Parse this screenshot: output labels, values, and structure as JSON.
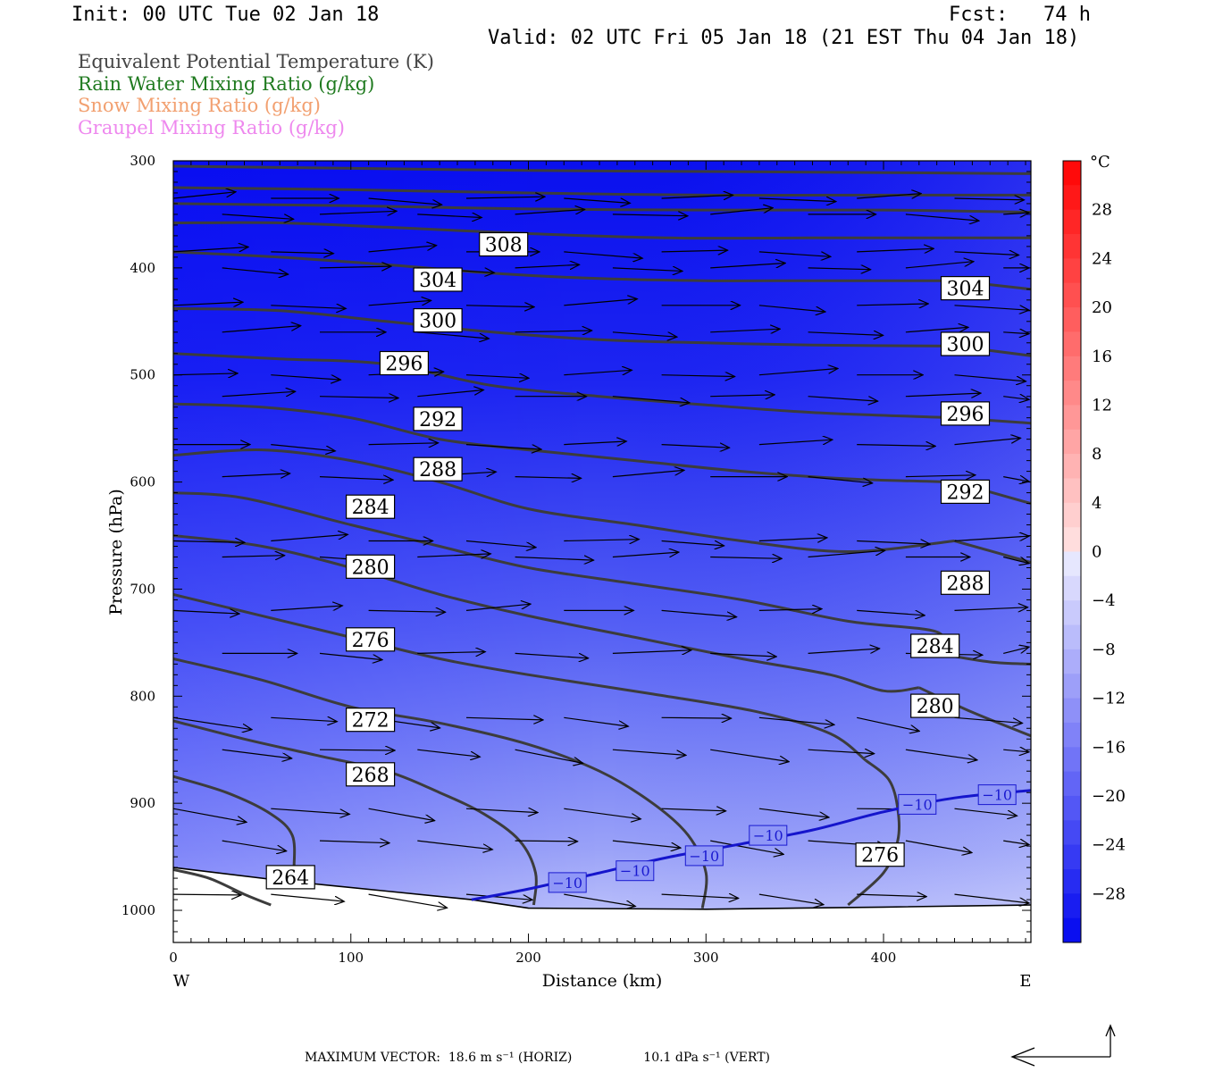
{
  "header": {
    "init": "Init: 00 UTC Tue 02 Jan 18",
    "fcst": "Fcst:   74 h",
    "valid": "Valid: 02 UTC Fri 05 Jan 18 (21 EST Thu 04 Jan 18)"
  },
  "legend": [
    {
      "label": "Equivalent Potential Temperature (K)",
      "color": "#444444"
    },
    {
      "label": "Rain Water Mixing Ratio (g/kg)",
      "color": "#1f7a1f"
    },
    {
      "label": "Snow Mixing Ratio (g/kg)",
      "color": "#f2a070"
    },
    {
      "label": "Graupel Mixing Ratio (g/kg)",
      "color": "#ee88ee"
    }
  ],
  "footer": {
    "max_vector_label": "MAXIMUM VECTOR:",
    "horiz": "18.6 m s⁻¹ (HORIZ)",
    "vert": "10.1 dPa s⁻¹ (VERT)"
  },
  "chart_data": {
    "type": "contour",
    "xlabel": "Distance (km)",
    "ylabel": "Pressure (hPa)",
    "xlim": [
      0,
      483
    ],
    "ylim": [
      1030,
      300
    ],
    "x_ticks": [
      0,
      100,
      200,
      300,
      400
    ],
    "y_ticks": [
      300,
      400,
      500,
      600,
      700,
      800,
      900,
      1000
    ],
    "x_end_labels": {
      "left": "W",
      "right": "E"
    },
    "colorbar": {
      "unit": "°C",
      "ticks": [
        28,
        24,
        20,
        16,
        12,
        8,
        4,
        0,
        -4,
        -8,
        -12,
        -16,
        -20,
        -24,
        -28
      ],
      "tick_labels": [
        "28",
        "24",
        "20",
        "16",
        "12",
        "8",
        "4",
        "0",
        "−4",
        "−8",
        "−12",
        "−16",
        "−20",
        "−24",
        "−28"
      ],
      "range": [
        -32,
        32
      ]
    },
    "theta_e_contours": [
      {
        "value": 264,
        "label": "264",
        "points": [
          [
            0,
            962
          ],
          [
            20,
            970
          ],
          [
            40,
            985
          ],
          [
            55,
            995
          ]
        ]
      },
      {
        "value": 268,
        "label": "268",
        "points": [
          [
            0,
            875
          ],
          [
            30,
            890
          ],
          [
            55,
            910
          ],
          [
            67,
            930
          ],
          [
            68,
            960
          ]
        ]
      },
      {
        "value": 272,
        "label": "272",
        "points": [
          [
            0,
            823
          ],
          [
            40,
            840
          ],
          [
            80,
            855
          ],
          [
            120,
            870
          ],
          [
            150,
            890
          ],
          [
            175,
            910
          ],
          [
            195,
            935
          ],
          [
            204,
            965
          ],
          [
            203,
            995
          ]
        ]
      },
      {
        "value": 276,
        "label": "276",
        "points": [
          [
            0,
            765
          ],
          [
            50,
            785
          ],
          [
            100,
            810
          ],
          [
            150,
            825
          ],
          [
            200,
            845
          ],
          [
            240,
            870
          ],
          [
            270,
            900
          ],
          [
            290,
            930
          ],
          [
            300,
            965
          ],
          [
            298,
            998
          ]
        ]
      },
      {
        "value": 276,
        "label": "276",
        "points": [
          [
            380,
            995
          ],
          [
            400,
            965
          ],
          [
            408,
            935
          ],
          [
            408,
            905
          ],
          [
            403,
            878
          ],
          [
            390,
            860
          ]
        ]
      },
      {
        "value": 280,
        "label": "280",
        "points": [
          [
            0,
            705
          ],
          [
            50,
            725
          ],
          [
            100,
            745
          ],
          [
            150,
            765
          ],
          [
            200,
            780
          ],
          [
            270,
            798
          ],
          [
            330,
            815
          ],
          [
            370,
            835
          ],
          [
            390,
            860
          ]
        ]
      },
      {
        "value": 280,
        "label": "280",
        "points": [
          [
            420,
            792
          ],
          [
            450,
            815
          ],
          [
            483,
            837
          ]
        ]
      },
      {
        "value": 284,
        "label": "284",
        "points": [
          [
            0,
            650
          ],
          [
            50,
            660
          ],
          [
            100,
            680
          ],
          [
            150,
            705
          ],
          [
            200,
            725
          ],
          [
            260,
            745
          ],
          [
            320,
            765
          ],
          [
            370,
            780
          ],
          [
            400,
            795
          ],
          [
            420,
            792
          ]
        ]
      },
      {
        "value": 284,
        "label": "284",
        "points": [
          [
            430,
            760
          ],
          [
            460,
            768
          ],
          [
            483,
            770
          ]
        ]
      },
      {
        "value": 288,
        "label": "288",
        "points": [
          [
            0,
            610
          ],
          [
            40,
            615
          ],
          [
            100,
            640
          ],
          [
            150,
            660
          ],
          [
            200,
            680
          ],
          [
            260,
            695
          ],
          [
            320,
            710
          ],
          [
            380,
            730
          ],
          [
            430,
            740
          ],
          [
            430,
            760
          ]
        ]
      },
      {
        "value": 288,
        "label": "288",
        "points": [
          [
            440,
            655
          ],
          [
            483,
            675
          ]
        ]
      },
      {
        "value": 292,
        "label": "292",
        "points": [
          [
            0,
            575
          ],
          [
            50,
            570
          ],
          [
            100,
            580
          ],
          [
            150,
            600
          ],
          [
            200,
            625
          ],
          [
            260,
            640
          ],
          [
            320,
            655
          ],
          [
            380,
            665
          ],
          [
            440,
            655
          ]
        ]
      },
      {
        "value": 292,
        "label": "292",
        "points": [
          [
            440,
            600
          ],
          [
            483,
            620
          ]
        ]
      },
      {
        "value": 296,
        "label": "296",
        "points": [
          [
            0,
            527
          ],
          [
            50,
            530
          ],
          [
            100,
            540
          ],
          [
            150,
            560
          ],
          [
            200,
            570
          ],
          [
            260,
            580
          ],
          [
            320,
            590
          ],
          [
            380,
            597
          ],
          [
            440,
            600
          ]
        ]
      },
      {
        "value": 296,
        "label": "296",
        "points": [
          [
            440,
            540
          ],
          [
            483,
            545
          ]
        ]
      },
      {
        "value": 300,
        "label": "300",
        "points": [
          [
            0,
            480
          ],
          [
            60,
            485
          ],
          [
            120,
            490
          ],
          [
            180,
            510
          ],
          [
            240,
            520
          ],
          [
            300,
            528
          ],
          [
            360,
            535
          ],
          [
            440,
            540
          ]
        ]
      },
      {
        "value": 300,
        "label": "300",
        "points": [
          [
            440,
            473
          ],
          [
            483,
            482
          ]
        ]
      },
      {
        "value": 304,
        "label": "304",
        "points": [
          [
            0,
            438
          ],
          [
            60,
            440
          ],
          [
            120,
            450
          ],
          [
            180,
            460
          ],
          [
            240,
            467
          ],
          [
            300,
            470
          ],
          [
            360,
            472
          ],
          [
            440,
            473
          ]
        ]
      },
      {
        "value": 304,
        "label": "304",
        "points": [
          [
            440,
            412
          ],
          [
            483,
            420
          ]
        ]
      },
      {
        "value": 308,
        "label": "308",
        "points": [
          [
            0,
            385
          ],
          [
            60,
            390
          ],
          [
            120,
            397
          ],
          [
            180,
            405
          ],
          [
            240,
            410
          ],
          [
            300,
            412
          ],
          [
            360,
            412
          ],
          [
            440,
            412
          ]
        ]
      },
      {
        "value": 312,
        "label": "",
        "points": [
          [
            0,
            358
          ],
          [
            60,
            358
          ],
          [
            120,
            362
          ],
          [
            200,
            368
          ],
          [
            280,
            372
          ],
          [
            360,
            372
          ],
          [
            440,
            372
          ],
          [
            483,
            372
          ]
        ]
      },
      {
        "value": 316,
        "label": "",
        "points": [
          [
            0,
            340
          ],
          [
            100,
            342
          ],
          [
            200,
            345
          ],
          [
            300,
            346
          ],
          [
            400,
            346
          ],
          [
            483,
            348
          ]
        ]
      },
      {
        "value": 320,
        "label": "",
        "points": [
          [
            0,
            325
          ],
          [
            100,
            327
          ],
          [
            200,
            330
          ],
          [
            300,
            332
          ],
          [
            400,
            332
          ],
          [
            483,
            332
          ]
        ]
      },
      {
        "value": 324,
        "label": "",
        "points": [
          [
            0,
            305
          ],
          [
            100,
            307
          ],
          [
            200,
            309
          ],
          [
            300,
            310
          ],
          [
            400,
            311
          ],
          [
            483,
            312
          ]
        ]
      }
    ],
    "contour_labels": [
      {
        "text": "308",
        "x": 186,
        "p": 378
      },
      {
        "text": "304",
        "x": 149,
        "p": 411
      },
      {
        "text": "304",
        "x": 446,
        "p": 419
      },
      {
        "text": "300",
        "x": 149,
        "p": 449
      },
      {
        "text": "300",
        "x": 446,
        "p": 471
      },
      {
        "text": "296",
        "x": 130,
        "p": 489
      },
      {
        "text": "296",
        "x": 446,
        "p": 536
      },
      {
        "text": "292",
        "x": 149,
        "p": 541
      },
      {
        "text": "292",
        "x": 446,
        "p": 609
      },
      {
        "text": "288",
        "x": 149,
        "p": 588
      },
      {
        "text": "288",
        "x": 446,
        "p": 694
      },
      {
        "text": "284",
        "x": 111,
        "p": 623
      },
      {
        "text": "284",
        "x": 429,
        "p": 753
      },
      {
        "text": "280",
        "x": 111,
        "p": 679
      },
      {
        "text": "280",
        "x": 429,
        "p": 809
      },
      {
        "text": "276",
        "x": 111,
        "p": 747
      },
      {
        "text": "276",
        "x": 398,
        "p": 948
      },
      {
        "text": "272",
        "x": 111,
        "p": 822
      },
      {
        "text": "268",
        "x": 111,
        "p": 873
      },
      {
        "text": "264",
        "x": 66,
        "p": 969
      }
    ],
    "isotherm_minus10": {
      "value": -10,
      "label": "−10",
      "points": [
        [
          168,
          990
        ],
        [
          200,
          980
        ],
        [
          240,
          965
        ],
        [
          280,
          950
        ],
        [
          320,
          938
        ],
        [
          360,
          925
        ],
        [
          400,
          908
        ],
        [
          440,
          895
        ],
        [
          483,
          888
        ]
      ],
      "labels": [
        {
          "x": 222,
          "p": 974
        },
        {
          "x": 260,
          "p": 963
        },
        {
          "x": 299,
          "p": 949
        },
        {
          "x": 335,
          "p": 930
        },
        {
          "x": 419,
          "p": 901
        },
        {
          "x": 464,
          "p": 892
        }
      ]
    },
    "terrain_pressure": [
      [
        0,
        960
      ],
      [
        60,
        972
      ],
      [
        120,
        982
      ],
      [
        168,
        990
      ],
      [
        200,
        998
      ],
      [
        300,
        999
      ],
      [
        400,
        997
      ],
      [
        483,
        995
      ]
    ],
    "wind_rows_pressure": [
      335,
      350,
      385,
      400,
      435,
      460,
      500,
      520,
      565,
      595,
      655,
      670,
      720,
      760,
      820,
      850,
      905,
      935,
      985
    ],
    "max_vector": {
      "horiz": 18.6,
      "vert": 10.1
    }
  }
}
